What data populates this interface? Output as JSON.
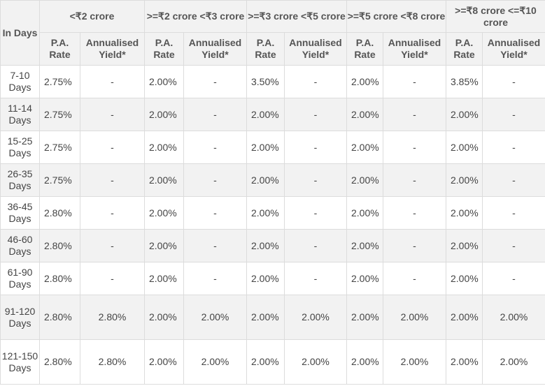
{
  "header": {
    "days_label": "In Days",
    "groups": [
      "<₹2 crore",
      ">=₹2 crore <₹3 crore",
      ">=₹3 crore <₹5 crore",
      ">=₹5 crore <₹8 crore",
      ">=₹8 crore <=₹10 crore"
    ],
    "pa_rate": "P.A. Rate",
    "annualised_yield": "Annualised Yield*"
  },
  "rows": [
    {
      "days": "7-10 Days",
      "cells": [
        "2.75%",
        "-",
        "2.00%",
        "-",
        "3.50%",
        "-",
        "2.00%",
        "-",
        "3.85%",
        "-"
      ]
    },
    {
      "days": "11-14 Days",
      "cells": [
        "2.75%",
        "-",
        "2.00%",
        "-",
        "2.00%",
        "-",
        "2.00%",
        "-",
        "2.00%",
        "-"
      ]
    },
    {
      "days": "15-25 Days",
      "cells": [
        "2.75%",
        "-",
        "2.00%",
        "-",
        "2.00%",
        "-",
        "2.00%",
        "-",
        "2.00%",
        "-"
      ]
    },
    {
      "days": "26-35 Days",
      "cells": [
        "2.75%",
        "-",
        "2.00%",
        "-",
        "2.00%",
        "-",
        "2.00%",
        "-",
        "2.00%",
        "-"
      ]
    },
    {
      "days": "36-45 Days",
      "cells": [
        "2.80%",
        "-",
        "2.00%",
        "-",
        "2.00%",
        "-",
        "2.00%",
        "-",
        "2.00%",
        "-"
      ]
    },
    {
      "days": "46-60 Days",
      "cells": [
        "2.80%",
        "-",
        "2.00%",
        "-",
        "2.00%",
        "-",
        "2.00%",
        "-",
        "2.00%",
        "-"
      ]
    },
    {
      "days": "61-90 Days",
      "cells": [
        "2.80%",
        "-",
        "2.00%",
        "-",
        "2.00%",
        "-",
        "2.00%",
        "-",
        "2.00%",
        "-"
      ]
    },
    {
      "days": "91-120 Days",
      "cells": [
        "2.80%",
        "2.80%",
        "2.00%",
        "2.00%",
        "2.00%",
        "2.00%",
        "2.00%",
        "2.00%",
        "2.00%",
        "2.00%"
      ]
    },
    {
      "days": "121-150 Days",
      "cells": [
        "2.80%",
        "2.80%",
        "2.00%",
        "2.00%",
        "2.00%",
        "2.00%",
        "2.00%",
        "2.00%",
        "2.00%",
        "2.00%"
      ]
    }
  ]
}
